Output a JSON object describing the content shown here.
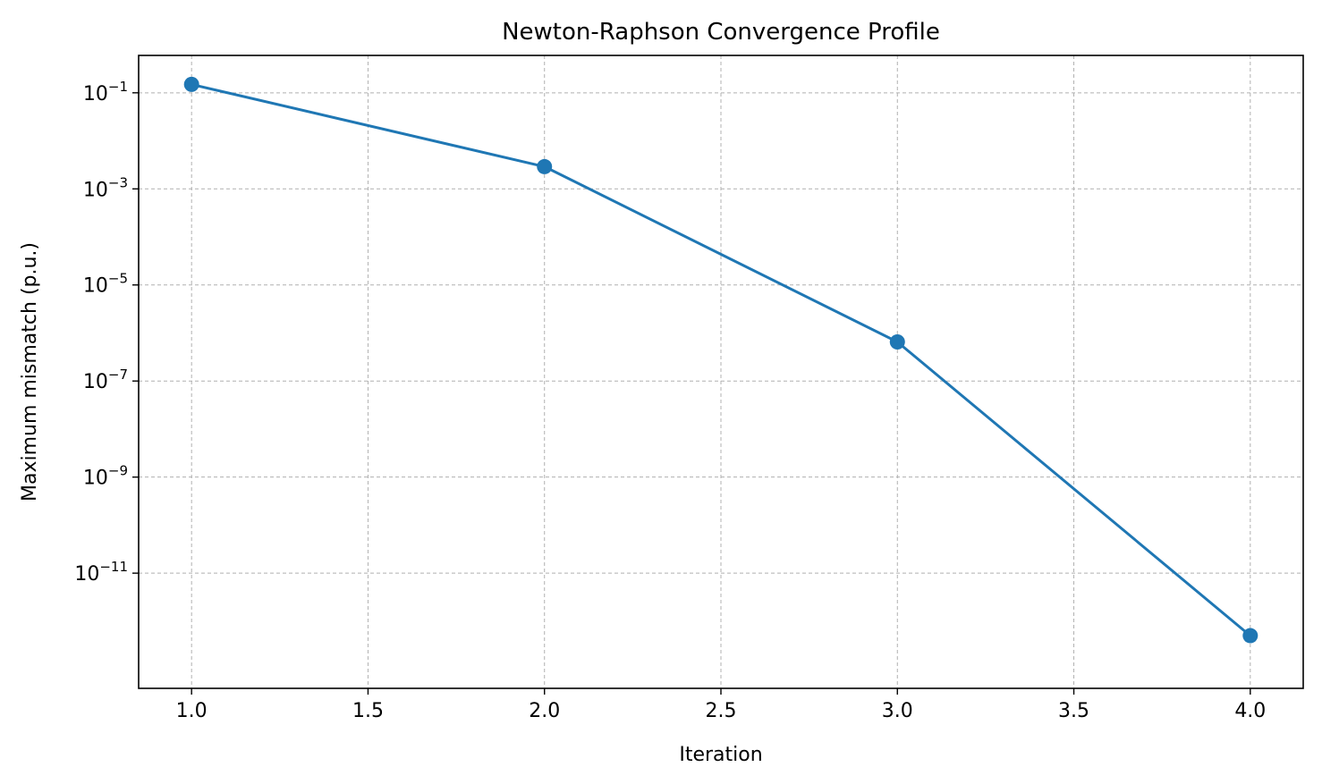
{
  "chart_data": {
    "type": "line",
    "title": "Newton-Raphson Convergence Profile",
    "xlabel": "Iteration",
    "ylabel": "Maximum mismatch (p.u.)",
    "x_scale": "linear",
    "y_scale": "log",
    "xlim": [
      0.85,
      4.15
    ],
    "ylim": [
      4e-14,
      0.6
    ],
    "x_ticks": [
      1.0,
      1.5,
      2.0,
      2.5,
      3.0,
      3.5,
      4.0
    ],
    "x_tick_labels": [
      "1.0",
      "1.5",
      "2.0",
      "2.5",
      "3.0",
      "3.5",
      "4.0"
    ],
    "y_ticks": [
      0.1,
      0.001,
      1e-05,
      1e-07,
      1e-09,
      1e-11
    ],
    "y_tick_labels": [
      {
        "base": "10",
        "exp": "−1"
      },
      {
        "base": "10",
        "exp": "−3"
      },
      {
        "base": "10",
        "exp": "−5"
      },
      {
        "base": "10",
        "exp": "−7"
      },
      {
        "base": "10",
        "exp": "−9"
      },
      {
        "base": "10",
        "exp": "−11"
      }
    ],
    "grid": true,
    "series": [
      {
        "color": "#1f77b4",
        "marker": "circle",
        "x": [
          1,
          2,
          3,
          4
        ],
        "y": [
          0.15,
          0.0029,
          6.5e-07,
          5e-13
        ]
      }
    ]
  }
}
